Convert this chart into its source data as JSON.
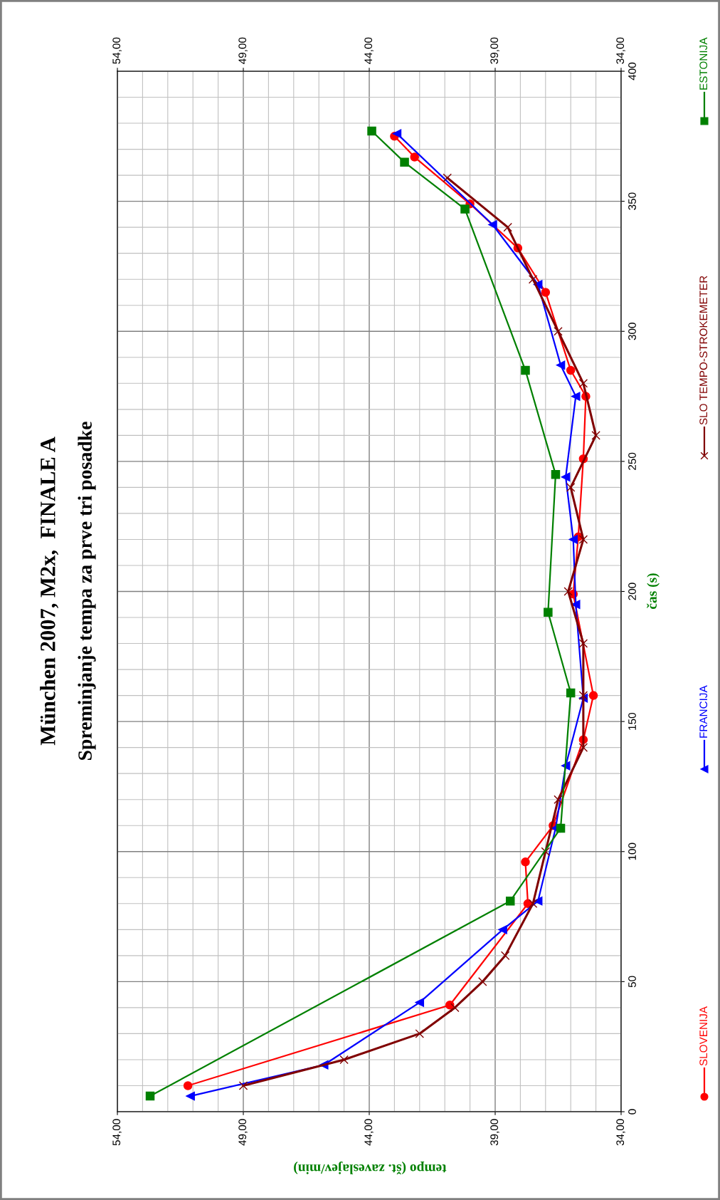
{
  "chart_data": {
    "type": "line",
    "title": "München 2007, M2x,  FINALE A",
    "subtitle": "Spreminjanje tempa za prve tri posadke",
    "xlabel": "tempo (št. zaveslajev/min)",
    "ylabel": "čas (s)",
    "ylim": [
      0,
      400
    ],
    "yticks": [
      0,
      50,
      100,
      150,
      200,
      250,
      300,
      350,
      400
    ],
    "xlim": [
      54,
      34
    ],
    "xticks": [
      {
        "value": 54,
        "label": "54,00"
      },
      {
        "value": 49,
        "label": "49,00"
      },
      {
        "value": 44,
        "label": "44,00"
      },
      {
        "value": 39,
        "label": "39,00"
      },
      {
        "value": 34,
        "label": "34,00"
      }
    ],
    "x2lim": [
      54,
      34
    ],
    "x2ticks": [
      {
        "value": 54,
        "label": "54,00"
      },
      {
        "value": 49,
        "label": "49,00"
      },
      {
        "value": 44,
        "label": "44,00"
      },
      {
        "value": 39,
        "label": "39,00"
      },
      {
        "value": 34,
        "label": "34,00"
      }
    ],
    "grid": true,
    "legend": "right",
    "line_style": "solid",
    "series": [
      {
        "name": "SLOVENIJA",
        "color": "#ff0000",
        "marker": "circle",
        "values": [
          10,
          41,
          80,
          96,
          110,
          143,
          160,
          199,
          221,
          251,
          275,
          285,
          315,
          332,
          349,
          367,
          375
        ],
        "x": [
          51.2,
          40.8,
          37.7,
          37.8,
          36.7,
          35.5,
          35.1,
          35.9,
          35.7,
          35.5,
          35.4,
          36.0,
          37.0,
          38.1,
          40.0,
          42.2,
          43.0
        ]
      },
      {
        "name": "FRANCIJA",
        "color": "#0000ff",
        "marker": "triangle",
        "values": [
          6,
          18,
          42,
          70,
          81,
          109,
          133,
          159,
          195,
          220,
          244,
          275,
          287,
          318,
          341,
          376
        ],
        "x": [
          51.1,
          45.8,
          42.0,
          38.7,
          37.3,
          36.6,
          36.2,
          35.5,
          35.8,
          35.9,
          36.2,
          35.8,
          36.4,
          37.3,
          39.1,
          42.9
        ]
      },
      {
        "name": "SLO TEMPO-STROKEMETER",
        "color": "#800000",
        "marker": "cross",
        "values": [
          10,
          20,
          30,
          40,
          50,
          60,
          80,
          100,
          120,
          140,
          160,
          180,
          200,
          220,
          240,
          260,
          280,
          300,
          320,
          340,
          359
        ],
        "x": [
          49.0,
          45.0,
          42.0,
          40.6,
          39.5,
          38.6,
          37.5,
          37.0,
          36.5,
          35.5,
          35.5,
          35.5,
          36.1,
          35.5,
          36.0,
          35.0,
          35.5,
          36.5,
          37.5,
          38.5,
          40.9
        ]
      },
      {
        "name": "ESTONIJA",
        "color": "#008000",
        "marker": "square",
        "values": [
          6,
          81,
          109,
          161,
          192,
          245,
          285,
          347,
          365,
          377
        ],
        "x": [
          52.7,
          38.4,
          36.4,
          36.0,
          36.9,
          36.6,
          37.8,
          40.2,
          42.6,
          43.9
        ]
      }
    ]
  }
}
